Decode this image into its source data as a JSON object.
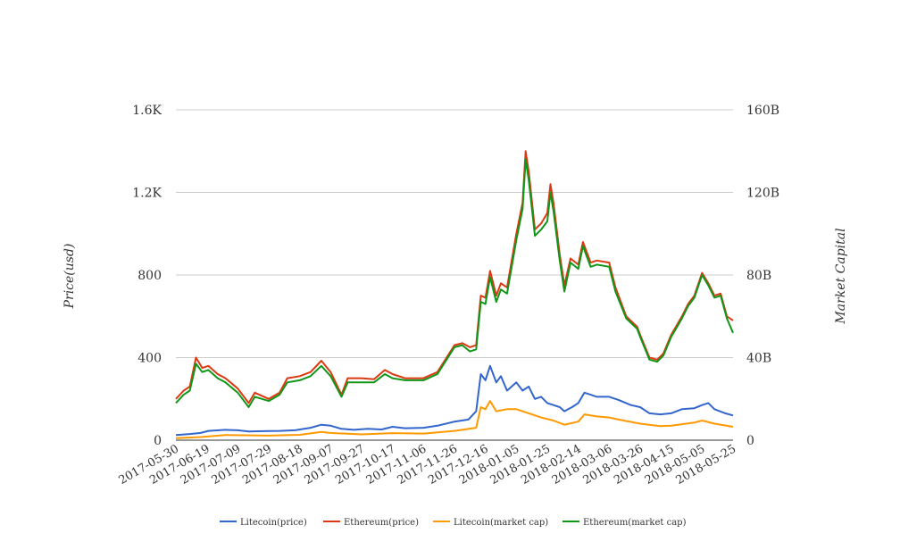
{
  "chart_data": {
    "type": "line",
    "title": "",
    "ylabel_left": "Price(usd)",
    "ylabel_right": "Market Capital",
    "ylim_left": [
      0,
      1600
    ],
    "ylim_right": [
      0,
      160000000000
    ],
    "yticks_left": [
      "0",
      "400",
      "800",
      "1.2K",
      "1.6K"
    ],
    "yticks_right": [
      "0",
      "40B",
      "80B",
      "120B",
      "160B"
    ],
    "grid": true,
    "legend_position": "bottom",
    "xlim": [
      "2017-05-30",
      "2018-05-25"
    ],
    "x_tick_labels": [
      "2017-05-30",
      "2017-06-19",
      "2017-07-09",
      "2017-07-29",
      "2017-08-18",
      "2017-09-07",
      "2017-09-27",
      "2017-10-17",
      "2017-11-06",
      "2017-11-26",
      "2017-12-16",
      "2018-01-05",
      "2018-01-25",
      "2018-02-14",
      "2018-03-06",
      "2018-03-26",
      "2018-04-15",
      "2018-05-05",
      "2018-05-25"
    ],
    "series": [
      {
        "name": "Litecoin(price)",
        "axis": "left",
        "color": "#3366cc",
        "points": [
          [
            "2017-05-30",
            25
          ],
          [
            "2017-06-08",
            30
          ],
          [
            "2017-06-15",
            35
          ],
          [
            "2017-06-20",
            45
          ],
          [
            "2017-07-01",
            50
          ],
          [
            "2017-07-09",
            48
          ],
          [
            "2017-07-16",
            42
          ],
          [
            "2017-07-29",
            44
          ],
          [
            "2017-08-05",
            45
          ],
          [
            "2017-08-15",
            48
          ],
          [
            "2017-08-25",
            60
          ],
          [
            "2017-09-01",
            75
          ],
          [
            "2017-09-07",
            70
          ],
          [
            "2017-09-14",
            55
          ],
          [
            "2017-09-22",
            50
          ],
          [
            "2017-10-01",
            55
          ],
          [
            "2017-10-10",
            52
          ],
          [
            "2017-10-17",
            65
          ],
          [
            "2017-10-25",
            58
          ],
          [
            "2017-11-06",
            60
          ],
          [
            "2017-11-15",
            70
          ],
          [
            "2017-11-26",
            90
          ],
          [
            "2017-12-05",
            100
          ],
          [
            "2017-12-10",
            140
          ],
          [
            "2017-12-13",
            320
          ],
          [
            "2017-12-16",
            290
          ],
          [
            "2017-12-19",
            360
          ],
          [
            "2017-12-23",
            280
          ],
          [
            "2017-12-26",
            310
          ],
          [
            "2017-12-30",
            240
          ],
          [
            "2018-01-05",
            280
          ],
          [
            "2018-01-09",
            240
          ],
          [
            "2018-01-13",
            260
          ],
          [
            "2018-01-17",
            200
          ],
          [
            "2018-01-21",
            210
          ],
          [
            "2018-01-25",
            180
          ],
          [
            "2018-01-29",
            170
          ],
          [
            "2018-02-02",
            160
          ],
          [
            "2018-02-05",
            140
          ],
          [
            "2018-02-10",
            160
          ],
          [
            "2018-02-14",
            180
          ],
          [
            "2018-02-18",
            230
          ],
          [
            "2018-02-22",
            220
          ],
          [
            "2018-02-26",
            210
          ],
          [
            "2018-03-06",
            210
          ],
          [
            "2018-03-12",
            195
          ],
          [
            "2018-03-20",
            170
          ],
          [
            "2018-03-26",
            160
          ],
          [
            "2018-04-01",
            130
          ],
          [
            "2018-04-08",
            125
          ],
          [
            "2018-04-15",
            130
          ],
          [
            "2018-04-22",
            150
          ],
          [
            "2018-04-30",
            155
          ],
          [
            "2018-05-05",
            170
          ],
          [
            "2018-05-09",
            180
          ],
          [
            "2018-05-13",
            150
          ],
          [
            "2018-05-20",
            130
          ],
          [
            "2018-05-25",
            120
          ]
        ]
      },
      {
        "name": "Ethereum(price)",
        "axis": "left",
        "color": "#dc3912",
        "points": [
          [
            "2017-05-30",
            200
          ],
          [
            "2017-06-04",
            240
          ],
          [
            "2017-06-08",
            260
          ],
          [
            "2017-06-12",
            400
          ],
          [
            "2017-06-16",
            350
          ],
          [
            "2017-06-20",
            360
          ],
          [
            "2017-06-26",
            320
          ],
          [
            "2017-07-01",
            300
          ],
          [
            "2017-07-09",
            250
          ],
          [
            "2017-07-16",
            180
          ],
          [
            "2017-07-20",
            230
          ],
          [
            "2017-07-29",
            200
          ],
          [
            "2017-08-05",
            230
          ],
          [
            "2017-08-10",
            300
          ],
          [
            "2017-08-18",
            310
          ],
          [
            "2017-08-25",
            330
          ],
          [
            "2017-09-01",
            385
          ],
          [
            "2017-09-07",
            330
          ],
          [
            "2017-09-14",
            220
          ],
          [
            "2017-09-18",
            300
          ],
          [
            "2017-09-27",
            300
          ],
          [
            "2017-10-05",
            295
          ],
          [
            "2017-10-12",
            340
          ],
          [
            "2017-10-17",
            320
          ],
          [
            "2017-10-25",
            300
          ],
          [
            "2017-11-06",
            300
          ],
          [
            "2017-11-15",
            330
          ],
          [
            "2017-11-26",
            460
          ],
          [
            "2017-12-01",
            470
          ],
          [
            "2017-12-06",
            450
          ],
          [
            "2017-12-10",
            460
          ],
          [
            "2017-12-13",
            700
          ],
          [
            "2017-12-16",
            690
          ],
          [
            "2017-12-19",
            820
          ],
          [
            "2017-12-23",
            700
          ],
          [
            "2017-12-26",
            760
          ],
          [
            "2017-12-30",
            740
          ],
          [
            "2018-01-05",
            1000
          ],
          [
            "2018-01-09",
            1150
          ],
          [
            "2018-01-11",
            1400
          ],
          [
            "2018-01-13",
            1300
          ],
          [
            "2018-01-17",
            1020
          ],
          [
            "2018-01-21",
            1050
          ],
          [
            "2018-01-25",
            1100
          ],
          [
            "2018-01-27",
            1240
          ],
          [
            "2018-01-29",
            1150
          ],
          [
            "2018-02-02",
            900
          ],
          [
            "2018-02-05",
            750
          ],
          [
            "2018-02-09",
            880
          ],
          [
            "2018-02-14",
            850
          ],
          [
            "2018-02-17",
            960
          ],
          [
            "2018-02-22",
            860
          ],
          [
            "2018-02-26",
            870
          ],
          [
            "2018-03-06",
            860
          ],
          [
            "2018-03-10",
            740
          ],
          [
            "2018-03-17",
            600
          ],
          [
            "2018-03-24",
            550
          ],
          [
            "2018-03-26",
            510
          ],
          [
            "2018-04-01",
            400
          ],
          [
            "2018-04-06",
            390
          ],
          [
            "2018-04-10",
            420
          ],
          [
            "2018-04-15",
            510
          ],
          [
            "2018-04-22",
            600
          ],
          [
            "2018-04-26",
            660
          ],
          [
            "2018-04-30",
            700
          ],
          [
            "2018-05-05",
            810
          ],
          [
            "2018-05-09",
            760
          ],
          [
            "2018-05-13",
            700
          ],
          [
            "2018-05-17",
            710
          ],
          [
            "2018-05-21",
            600
          ],
          [
            "2018-05-25",
            580
          ]
        ]
      },
      {
        "name": "Litecoin(market cap)",
        "axis": "right",
        "color": "#ff9900",
        "points": [
          [
            "2017-05-30",
            1000000000
          ],
          [
            "2017-06-15",
            1500000000
          ],
          [
            "2017-07-01",
            2500000000
          ],
          [
            "2017-07-29",
            2200000000
          ],
          [
            "2017-08-18",
            2600000000
          ],
          [
            "2017-09-01",
            4000000000
          ],
          [
            "2017-09-07",
            3500000000
          ],
          [
            "2017-09-27",
            2800000000
          ],
          [
            "2017-10-17",
            3400000000
          ],
          [
            "2017-11-06",
            3200000000
          ],
          [
            "2017-11-26",
            4500000000
          ],
          [
            "2017-12-10",
            6000000000
          ],
          [
            "2017-12-13",
            16000000000
          ],
          [
            "2017-12-16",
            15000000000
          ],
          [
            "2017-12-19",
            19000000000
          ],
          [
            "2017-12-23",
            14000000000
          ],
          [
            "2017-12-30",
            15000000000
          ],
          [
            "2018-01-05",
            15000000000
          ],
          [
            "2018-01-13",
            13000000000
          ],
          [
            "2018-01-21",
            11000000000
          ],
          [
            "2018-01-29",
            9500000000
          ],
          [
            "2018-02-05",
            7500000000
          ],
          [
            "2018-02-14",
            9000000000
          ],
          [
            "2018-02-18",
            12500000000
          ],
          [
            "2018-02-26",
            11500000000
          ],
          [
            "2018-03-06",
            11000000000
          ],
          [
            "2018-03-12",
            10000000000
          ],
          [
            "2018-03-26",
            8000000000
          ],
          [
            "2018-04-08",
            6800000000
          ],
          [
            "2018-04-15",
            7000000000
          ],
          [
            "2018-04-30",
            8500000000
          ],
          [
            "2018-05-05",
            9500000000
          ],
          [
            "2018-05-13",
            8000000000
          ],
          [
            "2018-05-25",
            6500000000
          ]
        ]
      },
      {
        "name": "Ethereum(market cap)",
        "axis": "right",
        "color": "#109618",
        "points": [
          [
            "2017-05-30",
            18000000000
          ],
          [
            "2017-06-04",
            22000000000
          ],
          [
            "2017-06-08",
            24000000000
          ],
          [
            "2017-06-12",
            37000000000
          ],
          [
            "2017-06-16",
            33000000000
          ],
          [
            "2017-06-20",
            34000000000
          ],
          [
            "2017-06-26",
            30000000000
          ],
          [
            "2017-07-01",
            28000000000
          ],
          [
            "2017-07-09",
            23000000000
          ],
          [
            "2017-07-16",
            16000000000
          ],
          [
            "2017-07-20",
            21000000000
          ],
          [
            "2017-07-29",
            19000000000
          ],
          [
            "2017-08-05",
            22000000000
          ],
          [
            "2017-08-10",
            28000000000
          ],
          [
            "2017-08-18",
            29000000000
          ],
          [
            "2017-08-25",
            31000000000
          ],
          [
            "2017-09-01",
            36000000000
          ],
          [
            "2017-09-07",
            31000000000
          ],
          [
            "2017-09-14",
            21000000000
          ],
          [
            "2017-09-18",
            28000000000
          ],
          [
            "2017-09-27",
            28000000000
          ],
          [
            "2017-10-05",
            28000000000
          ],
          [
            "2017-10-12",
            32000000000
          ],
          [
            "2017-10-17",
            30000000000
          ],
          [
            "2017-10-25",
            29000000000
          ],
          [
            "2017-11-06",
            29000000000
          ],
          [
            "2017-11-15",
            32000000000
          ],
          [
            "2017-11-26",
            45000000000
          ],
          [
            "2017-12-01",
            46000000000
          ],
          [
            "2017-12-06",
            43000000000
          ],
          [
            "2017-12-10",
            44000000000
          ],
          [
            "2017-12-13",
            67000000000
          ],
          [
            "2017-12-16",
            66000000000
          ],
          [
            "2017-12-19",
            79000000000
          ],
          [
            "2017-12-23",
            67000000000
          ],
          [
            "2017-12-26",
            73000000000
          ],
          [
            "2017-12-30",
            71000000000
          ],
          [
            "2018-01-05",
            97000000000
          ],
          [
            "2018-01-09",
            112000000000
          ],
          [
            "2018-01-11",
            136000000000
          ],
          [
            "2018-01-13",
            126000000000
          ],
          [
            "2018-01-17",
            99000000000
          ],
          [
            "2018-01-21",
            102000000000
          ],
          [
            "2018-01-25",
            106000000000
          ],
          [
            "2018-01-27",
            120000000000
          ],
          [
            "2018-01-29",
            111000000000
          ],
          [
            "2018-02-02",
            87000000000
          ],
          [
            "2018-02-05",
            72000000000
          ],
          [
            "2018-02-09",
            86000000000
          ],
          [
            "2018-02-14",
            83000000000
          ],
          [
            "2018-02-17",
            94000000000
          ],
          [
            "2018-02-22",
            84000000000
          ],
          [
            "2018-02-26",
            85000000000
          ],
          [
            "2018-03-06",
            84000000000
          ],
          [
            "2018-03-10",
            72000000000
          ],
          [
            "2018-03-17",
            59000000000
          ],
          [
            "2018-03-24",
            54000000000
          ],
          [
            "2018-03-26",
            50000000000
          ],
          [
            "2018-04-01",
            39000000000
          ],
          [
            "2018-04-06",
            38000000000
          ],
          [
            "2018-04-10",
            41000000000
          ],
          [
            "2018-04-15",
            50000000000
          ],
          [
            "2018-04-22",
            59000000000
          ],
          [
            "2018-04-26",
            65000000000
          ],
          [
            "2018-04-30",
            69000000000
          ],
          [
            "2018-05-05",
            80000000000
          ],
          [
            "2018-05-09",
            75000000000
          ],
          [
            "2018-05-13",
            69000000000
          ],
          [
            "2018-05-17",
            70000000000
          ],
          [
            "2018-05-21",
            59000000000
          ],
          [
            "2018-05-25",
            52000000000
          ]
        ]
      }
    ]
  }
}
